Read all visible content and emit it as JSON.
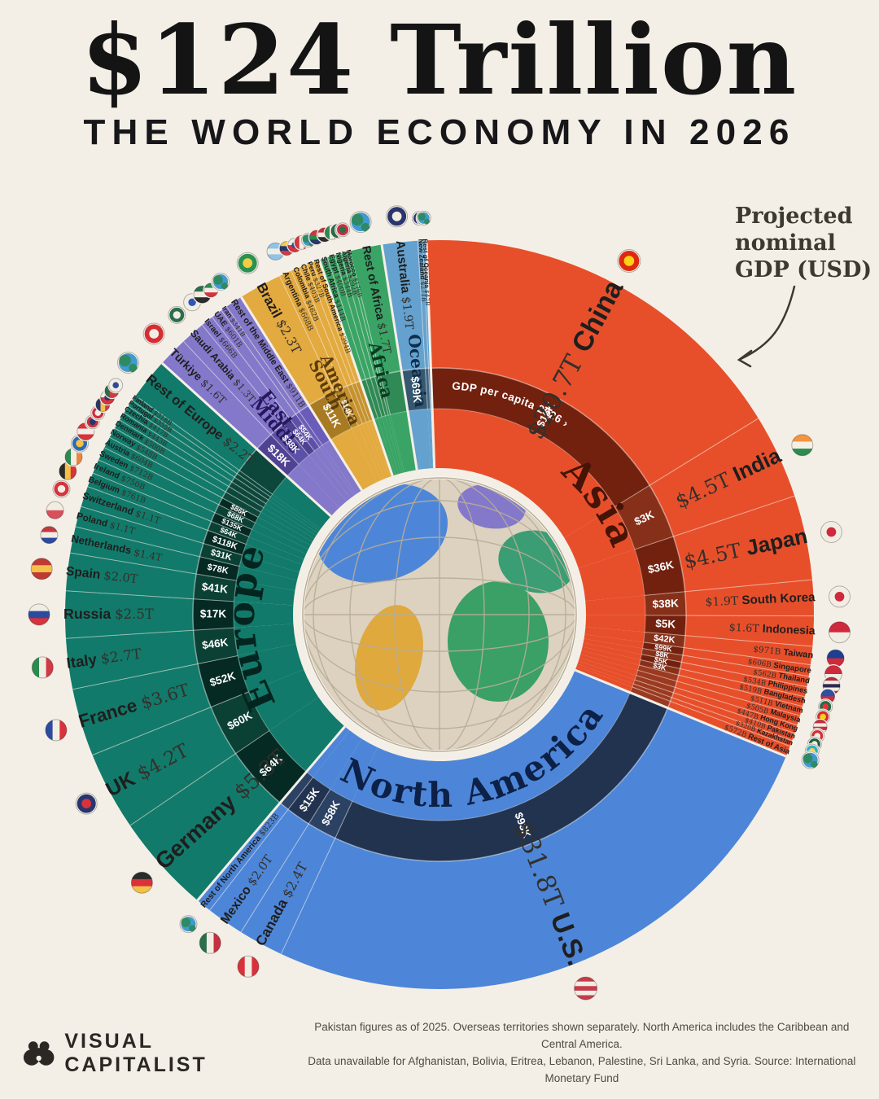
{
  "title": "$124 Trillion",
  "subtitle": "THE WORLD ECONOMY IN 2026",
  "annotation": {
    "lines": [
      "Projected",
      "nominal",
      "GDP (USD)"
    ]
  },
  "footer": {
    "brand": "VISUAL CAPITALIST",
    "note_line1": "Pakistan figures as of 2025. Overseas territories shown separately. North America includes the Caribbean and Central America.",
    "note_line2": "Data unavailable for Afghanistan, Bolivia, Eritrea, Lebanon, Palestine, Sri Lanka, and Syria. Source: International Monetary Fund"
  },
  "chart_data": {
    "type": "pie",
    "variant": "radial-sunburst-donut",
    "title": "$124 Trillion — The World Economy in 2026",
    "units": "Projected nominal GDP (USD), IMF",
    "inner_ring_label": "GDP per capita 2026 ›",
    "continents": [
      {
        "label": "Asia",
        "color": "#e74f2b",
        "band": [
          "#9c3a21",
          "#73210f",
          "#86301a"
        ],
        "label_color": "#461407",
        "label_mode": "arc",
        "arc_dir": "cw",
        "label_size": 46,
        "label_r": 228,
        "countries": [
          {
            "n": "China",
            "v": "$20.7T",
            "g": 20.7,
            "p": "$15K",
            "f": {
              "d": "h",
              "c": [
                "#de2910"
              ],
              "o": "#fcd116"
            }
          },
          {
            "n": "India",
            "v": "$4.5T",
            "g": 4.5,
            "p": "$3K",
            "f": {
              "d": "h",
              "c": [
                "#f5933e",
                "#f6f0e4",
                "#2e8a4f"
              ]
            }
          },
          {
            "n": "Japan",
            "v": "$4.5T",
            "g": 4.5,
            "p": "$36K",
            "f": {
              "d": "h",
              "c": [
                "#f2ede3"
              ],
              "o": "#cf2a3b"
            }
          },
          {
            "n": "South Korea",
            "v": "$1.9T",
            "g": 1.9,
            "p": "$38K",
            "f": {
              "d": "h",
              "c": [
                "#f2ede3"
              ],
              "o": "#cf2a3b"
            }
          },
          {
            "n": "Indonesia",
            "v": "$1.6T",
            "g": 1.6,
            "p": "$5K",
            "f": {
              "d": "h",
              "c": [
                "#cf2a3b",
                "#f2ede3"
              ]
            }
          },
          {
            "n": "Taiwan",
            "v": "$971B",
            "g": 0.971,
            "p": "$42K",
            "f": {
              "d": "h",
              "c": [
                "#1c3f94",
                "#cf2a3b"
              ]
            }
          },
          {
            "n": "Singapore",
            "v": "$606B",
            "g": 0.606,
            "p": "$99K",
            "f": {
              "d": "h",
              "c": [
                "#cf2a3b",
                "#f2ede3"
              ]
            }
          },
          {
            "n": "Thailand",
            "v": "$562B",
            "g": 0.562,
            "p": "$8K",
            "f": {
              "d": "h",
              "c": [
                "#b52c3b",
                "#f2ede3",
                "#2d2a54",
                "#f2ede3",
                "#b52c3b"
              ]
            }
          },
          {
            "n": "Philippines",
            "v": "$534B",
            "g": 0.534,
            "p": "$5K",
            "f": {
              "d": "h",
              "c": [
                "#2c50a2",
                "#cf2a3b"
              ]
            }
          },
          {
            "n": "Bangladesh",
            "v": "$519B",
            "g": 0.519,
            "p": "$3K",
            "f": {
              "d": "h",
              "c": [
                "#256b43"
              ],
              "o": "#e5323e"
            }
          },
          {
            "n": "Vietnam",
            "v": "$511B",
            "g": 0.511,
            "f": {
              "d": "h",
              "c": [
                "#d62c34"
              ],
              "o": "#f7d117"
            }
          },
          {
            "n": "Malaysia",
            "v": "$505B",
            "g": 0.505,
            "f": {
              "d": "h",
              "c": [
                "#cf2a3b",
                "#f2ede3",
                "#cf2a3b",
                "#f2ede3"
              ]
            }
          },
          {
            "n": "Hong Kong",
            "v": "$447B",
            "g": 0.447,
            "f": {
              "d": "h",
              "c": [
                "#d62c34"
              ],
              "o": "#f2ede3"
            }
          },
          {
            "n": "Pakistan",
            "v": "$410B",
            "g": 0.41,
            "f": {
              "d": "h",
              "c": [
                "#1f5c3d"
              ],
              "o": "#f2ede3"
            }
          },
          {
            "n": "Kazakhstan",
            "v": "$320B",
            "g": 0.32,
            "f": {
              "d": "h",
              "c": [
                "#27b0c4"
              ],
              "o": "#f3cd45"
            }
          },
          {
            "n": "Rest of Asia",
            "v": "$572B",
            "g": 0.572,
            "f": {
              "rest": true
            }
          }
        ]
      },
      {
        "label": "North America",
        "color": "#4d86d8",
        "band": [
          "#2c4265",
          "#223350",
          "#2c4265"
        ],
        "label_color": "#0d2148",
        "label_mode": "arc",
        "arc_dir": "ccw",
        "label_size": 42,
        "label_r": 236,
        "countries": [
          {
            "n": "U.S.",
            "v": "$31.8T",
            "g": 31.8,
            "p": "$93K",
            "f": {
              "d": "h",
              "c": [
                "#c43b4c",
                "#f2ede3",
                "#c43b4c",
                "#f2ede3",
                "#c43b4c"
              ]
            }
          },
          {
            "n": "Canada",
            "v": "$2.4T",
            "g": 2.4,
            "p": "$58K",
            "f": {
              "d": "v",
              "c": [
                "#d8323b",
                "#f2ede3",
                "#d8323b"
              ]
            }
          },
          {
            "n": "Mexico",
            "v": "$2.0T",
            "g": 2.0,
            "p": "$15K",
            "f": {
              "d": "v",
              "c": [
                "#2a6e4a",
                "#f2ede3",
                "#c43140"
              ]
            }
          },
          {
            "n": "Rest of North America",
            "v": "$823B",
            "g": 0.823,
            "f": {
              "rest": true
            }
          }
        ]
      },
      {
        "label": "Europe",
        "color": "#127a6a",
        "band": [
          "#0d473c",
          "#052a23",
          "#0b4035"
        ],
        "label_color": "#04251f",
        "label_mode": "arc",
        "arc_dir": "cw",
        "label_size": 46,
        "label_r": 228,
        "countries": [
          {
            "n": "Germany",
            "v": "$5.3T",
            "g": 5.3,
            "p": "$64K",
            "f": {
              "d": "h",
              "c": [
                "#2b2b2b",
                "#d8323b",
                "#f3c04a"
              ]
            }
          },
          {
            "n": "UK",
            "v": "$4.2T",
            "g": 4.2,
            "p": "$60K",
            "f": {
              "d": "h",
              "c": [
                "#28356e"
              ],
              "o": "#d8323b"
            }
          },
          {
            "n": "France",
            "v": "$3.6T",
            "g": 3.6,
            "p": "$52K",
            "f": {
              "d": "v",
              "c": [
                "#2c4a9e",
                "#f2ede3",
                "#d8323b"
              ]
            }
          },
          {
            "n": "Italy",
            "v": "$2.7T",
            "g": 2.7,
            "p": "$46K",
            "f": {
              "d": "v",
              "c": [
                "#2a8a4f",
                "#f2ede3",
                "#cf3a44"
              ]
            }
          },
          {
            "n": "Russia",
            "v": "$2.5T",
            "g": 2.5,
            "p": "$17K",
            "f": {
              "d": "h",
              "c": [
                "#f2ede3",
                "#2c4a9e",
                "#d8323b"
              ]
            }
          },
          {
            "n": "Spain",
            "v": "$2.0T",
            "g": 2.0,
            "p": "$41K",
            "f": {
              "d": "h",
              "c": [
                "#c03a34",
                "#f3c04a",
                "#c03a34"
              ]
            }
          },
          {
            "n": "Netherlands",
            "v": "$1.4T",
            "g": 1.4,
            "p": "$78K",
            "f": {
              "d": "h",
              "c": [
                "#c03a44",
                "#f2ede3",
                "#2c4a9e"
              ]
            }
          },
          {
            "n": "Poland",
            "v": "$1.1T",
            "g": 1.1,
            "p": "$31K",
            "f": {
              "d": "h",
              "c": [
                "#f2ede3",
                "#d8505c"
              ]
            }
          },
          {
            "n": "Switzerland",
            "v": "$1.1T",
            "g": 1.1,
            "p": "$118K",
            "f": {
              "d": "h",
              "c": [
                "#d8323b"
              ],
              "o": "#f2ede3"
            }
          },
          {
            "n": "Belgium",
            "v": "$761B",
            "g": 0.761,
            "p": "$64K",
            "f": {
              "d": "v",
              "c": [
                "#2b2b2b",
                "#f3c04a",
                "#d8323b"
              ]
            }
          },
          {
            "n": "Ireland",
            "v": "$750B",
            "g": 0.75,
            "p": "$135K",
            "f": {
              "d": "v",
              "c": [
                "#2a8a4f",
                "#f2ede3",
                "#e8883e"
              ]
            }
          },
          {
            "n": "Sweden",
            "v": "$712B",
            "g": 0.712,
            "p": "$68K",
            "f": {
              "d": "h",
              "c": [
                "#2c6bb0"
              ],
              "o": "#f3c04a"
            }
          },
          {
            "n": "Austria",
            "v": "$604B",
            "g": 0.604,
            "p": "$86K",
            "f": {
              "d": "h",
              "c": [
                "#d8323b",
                "#f2ede3",
                "#d8323b"
              ]
            }
          },
          {
            "n": "Norway",
            "v": "$548B",
            "g": 0.548,
            "f": {
              "d": "h",
              "c": [
                "#c43140"
              ],
              "o": "#28356e"
            }
          },
          {
            "n": "Denmark",
            "v": "$500B",
            "g": 0.5,
            "f": {
              "d": "h",
              "c": [
                "#cf2a3b"
              ],
              "o": "#f2ede3"
            }
          },
          {
            "n": "Romania",
            "v": "$443B",
            "g": 0.443,
            "f": {
              "d": "v",
              "c": [
                "#28356e",
                "#f3c04a",
                "#cf3a44"
              ]
            }
          },
          {
            "n": "Czechia",
            "v": "$417B",
            "g": 0.417,
            "f": {
              "d": "h",
              "c": [
                "#f2ede3",
                "#d8323b"
              ],
              "o": "#28356e"
            }
          },
          {
            "n": "Portugal",
            "v": "$355B",
            "g": 0.355,
            "f": {
              "d": "v",
              "c": [
                "#2a6e4a",
                "#cf3a44",
                "#cf3a44"
              ]
            }
          },
          {
            "n": "Finland",
            "v": "$318B",
            "g": 0.318,
            "f": {
              "d": "h",
              "c": [
                "#f2ede3"
              ],
              "o": "#2c4a9e"
            }
          },
          {
            "n": "Rest of Europe",
            "v": "$2.2T",
            "g": 2.2,
            "f": {
              "rest": true
            }
          }
        ]
      },
      {
        "label": "Middle East",
        "color": "#8478ca",
        "band": [
          "#6a5cb8",
          "#4f4293",
          "#5d50a8"
        ],
        "label_color": "#27175c",
        "label_mode": "radial",
        "label_lines": [
          "Middle",
          "East"
        ],
        "label_size": 21,
        "label_r_out": 348,
        "countries": [
          {
            "n": "Türkiye",
            "v": "$1.6T",
            "g": 1.6,
            "p": "$18K",
            "f": {
              "d": "h",
              "c": [
                "#d62c34"
              ],
              "o": "#f2ede3"
            }
          },
          {
            "n": "Saudi Arabia",
            "v": "$1.3T",
            "g": 1.3,
            "p": "$38K",
            "f": {
              "d": "h",
              "c": [
                "#2a6e4a"
              ],
              "o": "#f2ede3"
            }
          },
          {
            "n": "Israel",
            "v": "$666B",
            "g": 0.666,
            "p": "$64K",
            "f": {
              "d": "h",
              "c": [
                "#f2ede3"
              ],
              "o": "#2c55b8"
            }
          },
          {
            "n": "UAE",
            "v": "$601B",
            "g": 0.601,
            "p": "$54K",
            "f": {
              "d": "h",
              "c": [
                "#2a6e4a",
                "#f2ede3",
                "#2b2b2b"
              ]
            }
          },
          {
            "n": "Iran",
            "v": "$341B",
            "g": 0.341,
            "f": {
              "d": "h",
              "c": [
                "#2a8a4f",
                "#f2ede3",
                "#d8323b"
              ]
            }
          },
          {
            "n": "Rest of the Middle East",
            "v": "$911B",
            "g": 0.911,
            "f": {
              "rest": true
            }
          }
        ]
      },
      {
        "label": "South America",
        "color": "#e3aa3f",
        "band": [
          "#c6922e",
          "#a87a22",
          "#b98827"
        ],
        "label_color": "#5c3c0a",
        "label_mode": "radial",
        "label_lines": [
          "South",
          "America"
        ],
        "label_size": 20,
        "label_r_out": 348,
        "countries": [
          {
            "n": "Brazil",
            "v": "$2.3T",
            "g": 2.3,
            "p": "$11K",
            "f": {
              "d": "h",
              "c": [
                "#2a9250"
              ],
              "o": "#f3cd45"
            }
          },
          {
            "n": "Argentina",
            "v": "$668B",
            "g": 0.668,
            "p": "$14K",
            "f": {
              "d": "h",
              "c": [
                "#8fc3e8",
                "#f2ede3",
                "#8fc3e8"
              ]
            }
          },
          {
            "n": "Colombia",
            "v": "$462B",
            "g": 0.462,
            "f": {
              "d": "h",
              "c": [
                "#f3cd45",
                "#28356e",
                "#cf3a44"
              ]
            }
          },
          {
            "n": "Chile",
            "v": "$403B",
            "g": 0.403,
            "f": {
              "d": "h",
              "c": [
                "#f2ede3",
                "#d8323b"
              ],
              "o": "#2c4a9e"
            }
          },
          {
            "n": "Peru",
            "v": "$327B",
            "g": 0.327,
            "f": {
              "d": "v",
              "c": [
                "#d8323b",
                "#f2ede3",
                "#d8323b"
              ]
            }
          },
          {
            "n": "Rest of South America",
            "v": "$394B",
            "g": 0.394,
            "f": {
              "rest": true
            }
          }
        ]
      },
      {
        "label": "Africa",
        "color": "#39a465",
        "band": [
          "#2f8a55",
          "#226f42",
          "#2a7f4d"
        ],
        "label_color": "#0b3b22",
        "label_mode": "radial",
        "label_lines": [
          "Africa"
        ],
        "label_size": 21,
        "label_r_out": 344,
        "countries": [
          {
            "n": "South Africa",
            "v": "$444B",
            "g": 0.444,
            "f": {
              "d": "h",
              "c": [
                "#d8323b",
                "#2a8a4f",
                "#28356e"
              ]
            }
          },
          {
            "n": "Egypt",
            "v": "$400B",
            "g": 0.4,
            "f": {
              "d": "h",
              "c": [
                "#cf2a3b",
                "#f2ede3",
                "#2b2b2b"
              ]
            }
          },
          {
            "n": "Nigeria",
            "v": "$344B",
            "g": 0.344,
            "f": {
              "d": "v",
              "c": [
                "#2a8a4f",
                "#f2ede3",
                "#2a8a4f"
              ]
            }
          },
          {
            "n": "Algeria",
            "v": "$292B",
            "g": 0.292,
            "f": {
              "d": "v",
              "c": [
                "#2a6e4a",
                "#f2ede3"
              ],
              "o": "#d8323b"
            }
          },
          {
            "n": "Morocco",
            "v": "$176B",
            "g": 0.176,
            "f": {
              "d": "h",
              "c": [
                "#c43140"
              ],
              "o": "#2a6e4a"
            }
          },
          {
            "n": "Rest of Africa",
            "v": "$1.7T",
            "g": 1.7,
            "f": {
              "rest": true
            }
          }
        ]
      },
      {
        "label": "Oceania",
        "color": "#64a1cf",
        "band": [
          "#3f6788",
          "#35576f",
          "#3f6788"
        ],
        "label_color": "#0f2c4a",
        "label_mode": "radial",
        "label_lines": [
          "Oceania"
        ],
        "label_size": 20,
        "label_r_out": 346,
        "countries": [
          {
            "n": "Australia",
            "v": "$1.9T",
            "g": 1.9,
            "p": "$69K",
            "f": {
              "d": "h",
              "c": [
                "#28356e"
              ],
              "o": "#f2ede3"
            }
          },
          {
            "n": "New Zealand",
            "v": "$271B",
            "g": 0.271,
            "f": {
              "d": "h",
              "c": [
                "#28356e"
              ],
              "o": "#cf2a3b"
            }
          },
          {
            "n": "Rest of Oceania",
            "v": "$47B",
            "g": 0.047,
            "f": {
              "rest": true
            }
          }
        ]
      }
    ]
  }
}
